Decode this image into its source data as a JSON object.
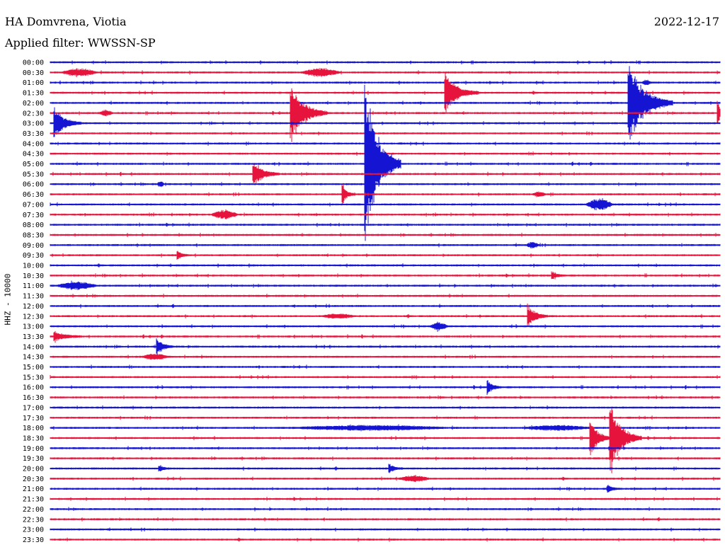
{
  "header": {
    "station": "HA Domvrena, Viotia",
    "date": "2022-12-17",
    "filter": "Applied filter: WWSSN-SP"
  },
  "colors": {
    "trace_a": "#1414d2",
    "trace_b": "#e6143c"
  },
  "chart_data": {
    "type": "line",
    "title": "HA Domvrena, Viotia",
    "subtitle": "Applied filter: WWSSN-SP",
    "date": "2022-12-17",
    "ylabel": "HHZ - 10000",
    "xlim_minutes": [
      0,
      30
    ],
    "row_labels": [
      "00:00",
      "00:30",
      "01:00",
      "01:30",
      "02:00",
      "02:30",
      "03:00",
      "03:30",
      "04:00",
      "04:30",
      "05:00",
      "05:30",
      "06:00",
      "06:30",
      "07:00",
      "07:30",
      "08:00",
      "08:30",
      "09:00",
      "09:30",
      "10:00",
      "10:30",
      "11:00",
      "11:30",
      "12:00",
      "12:30",
      "13:00",
      "13:30",
      "14:00",
      "14:30",
      "15:00",
      "15:30",
      "16:00",
      "16:30",
      "17:00",
      "17:30",
      "18:00",
      "18:30",
      "19:00",
      "19:30",
      "20:00",
      "20:30",
      "21:00",
      "21:30",
      "22:00",
      "22:30",
      "23:00",
      "23:30"
    ],
    "events": [
      {
        "row": 1,
        "t": 0.5,
        "amp": 5,
        "dur": 1.6,
        "type": "noise"
      },
      {
        "row": 1,
        "t": 11.2,
        "amp": 5,
        "dur": 1.8,
        "type": "noise"
      },
      {
        "row": 2,
        "t": 26.5,
        "amp": 3,
        "dur": 0.4,
        "type": "noise"
      },
      {
        "row": 3,
        "t": 17.7,
        "amp": 28,
        "dur": 1.5,
        "type": "quake"
      },
      {
        "row": 4,
        "t": 25.9,
        "amp": 60,
        "dur": 2.0,
        "type": "quake"
      },
      {
        "row": 5,
        "t": 10.8,
        "amp": 42,
        "dur": 1.6,
        "type": "quake"
      },
      {
        "row": 5,
        "t": 2.2,
        "amp": 4,
        "dur": 0.6,
        "type": "noise"
      },
      {
        "row": 5,
        "t": 29.9,
        "amp": 18,
        "dur": 0.4,
        "type": "quake"
      },
      {
        "row": 6,
        "t": 0.2,
        "amp": 22,
        "dur": 1.2,
        "type": "quake"
      },
      {
        "row": 10,
        "t": 14.1,
        "amp": 125,
        "dur": 1.6,
        "type": "quake"
      },
      {
        "row": 11,
        "t": 9.1,
        "amp": 18,
        "dur": 1.2,
        "type": "quake"
      },
      {
        "row": 12,
        "t": 4.8,
        "amp": 4,
        "dur": 0.3,
        "type": "noise"
      },
      {
        "row": 13,
        "t": 13.1,
        "amp": 14,
        "dur": 0.5,
        "type": "quake"
      },
      {
        "row": 13,
        "t": 21.6,
        "amp": 3,
        "dur": 0.6,
        "type": "noise"
      },
      {
        "row": 14,
        "t": 24.0,
        "amp": 8,
        "dur": 1.2,
        "type": "noise"
      },
      {
        "row": 15,
        "t": 7.2,
        "amp": 6,
        "dur": 1.2,
        "type": "noise"
      },
      {
        "row": 18,
        "t": 21.3,
        "amp": 4,
        "dur": 0.6,
        "type": "noise"
      },
      {
        "row": 19,
        "t": 5.7,
        "amp": 7,
        "dur": 0.5,
        "type": "quake"
      },
      {
        "row": 21,
        "t": 22.5,
        "amp": 5,
        "dur": 0.6,
        "type": "quake"
      },
      {
        "row": 22,
        "t": 0.3,
        "amp": 5,
        "dur": 1.8,
        "type": "noise"
      },
      {
        "row": 25,
        "t": 21.4,
        "amp": 16,
        "dur": 0.9,
        "type": "quake"
      },
      {
        "row": 25,
        "t": 12.2,
        "amp": 3,
        "dur": 1.4,
        "type": "noise"
      },
      {
        "row": 26,
        "t": 17.0,
        "amp": 5,
        "dur": 0.8,
        "type": "noise"
      },
      {
        "row": 27,
        "t": 0.2,
        "amp": 7,
        "dur": 1.2,
        "type": "quake"
      },
      {
        "row": 28,
        "t": 4.8,
        "amp": 12,
        "dur": 0.7,
        "type": "quake"
      },
      {
        "row": 29,
        "t": 4.1,
        "amp": 4,
        "dur": 1.2,
        "type": "noise"
      },
      {
        "row": 32,
        "t": 19.6,
        "amp": 10,
        "dur": 0.6,
        "type": "quake"
      },
      {
        "row": 36,
        "t": 10.8,
        "amp": 3,
        "dur": 7.0,
        "type": "noise"
      },
      {
        "row": 36,
        "t": 21.2,
        "amp": 3,
        "dur": 3.0,
        "type": "noise"
      },
      {
        "row": 37,
        "t": 24.2,
        "amp": 26,
        "dur": 1.0,
        "type": "quake"
      },
      {
        "row": 37,
        "t": 25.1,
        "amp": 48,
        "dur": 1.4,
        "type": "quake"
      },
      {
        "row": 40,
        "t": 4.9,
        "amp": 4,
        "dur": 0.5,
        "type": "quake"
      },
      {
        "row": 40,
        "t": 15.2,
        "amp": 6,
        "dur": 0.6,
        "type": "quake"
      },
      {
        "row": 41,
        "t": 15.6,
        "amp": 4,
        "dur": 1.4,
        "type": "noise"
      },
      {
        "row": 42,
        "t": 25.0,
        "amp": 5,
        "dur": 0.5,
        "type": "quake"
      }
    ],
    "grid": false,
    "legend": "none"
  }
}
